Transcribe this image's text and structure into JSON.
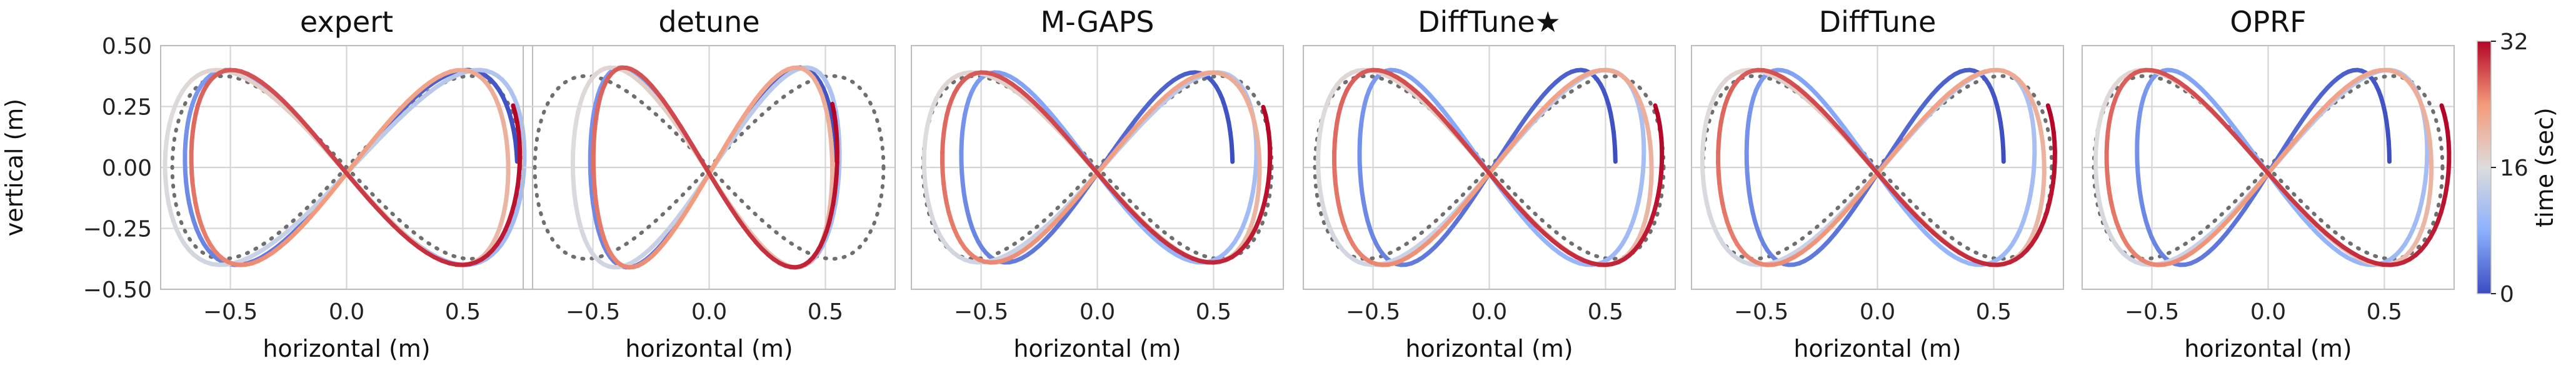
{
  "chart_data": {
    "type": "line",
    "xlabel": "horizontal (m)",
    "ylabel": "vertical (m)",
    "xlim": [
      -0.8,
      0.8
    ],
    "ylim": [
      -0.5,
      0.5
    ],
    "xticks": [
      -0.5,
      0.0,
      0.5
    ],
    "xtick_labels": [
      "−0.5",
      "0.0",
      "0.5"
    ],
    "yticks": [
      0.5,
      0.25,
      0.0,
      -0.25,
      -0.5
    ],
    "ytick_labels": [
      "0.50",
      "0.25",
      "0.00",
      "−0.25",
      "−0.50"
    ],
    "grid": true,
    "reference": {
      "style": "dotted",
      "color": "#6e6e6e",
      "xamp": 0.75,
      "yamp": 0.375
    },
    "colorbar": {
      "label": "time (sec)",
      "min": 0,
      "max": 32,
      "ticks": [
        0,
        16,
        32
      ],
      "tick_labels": [
        "0",
        "16",
        "32"
      ],
      "colormap": "coolwarm"
    },
    "panels": [
      {
        "title": "expert",
        "start_xamp": 0.76,
        "end_xamp": 0.72,
        "yamp": 0.4,
        "phase": 0.45
      },
      {
        "title": "detune",
        "start_xamp": 0.56,
        "end_xamp": 0.54,
        "yamp": 0.41,
        "phase": 0.25
      },
      {
        "title": "M-GAPS",
        "start_xamp": 0.6,
        "end_xamp": 0.72,
        "yamp": 0.39,
        "phase": 0.4
      },
      {
        "title": "DiffTune★",
        "start_xamp": 0.56,
        "end_xamp": 0.72,
        "yamp": 0.4,
        "phase": 0.4
      },
      {
        "title": "DiffTune",
        "start_xamp": 0.56,
        "end_xamp": 0.74,
        "yamp": 0.4,
        "phase": 0.4
      },
      {
        "title": "OPRF",
        "start_xamp": 0.55,
        "end_xamp": 0.74,
        "yamp": 0.4,
        "phase": 0.7
      }
    ]
  }
}
